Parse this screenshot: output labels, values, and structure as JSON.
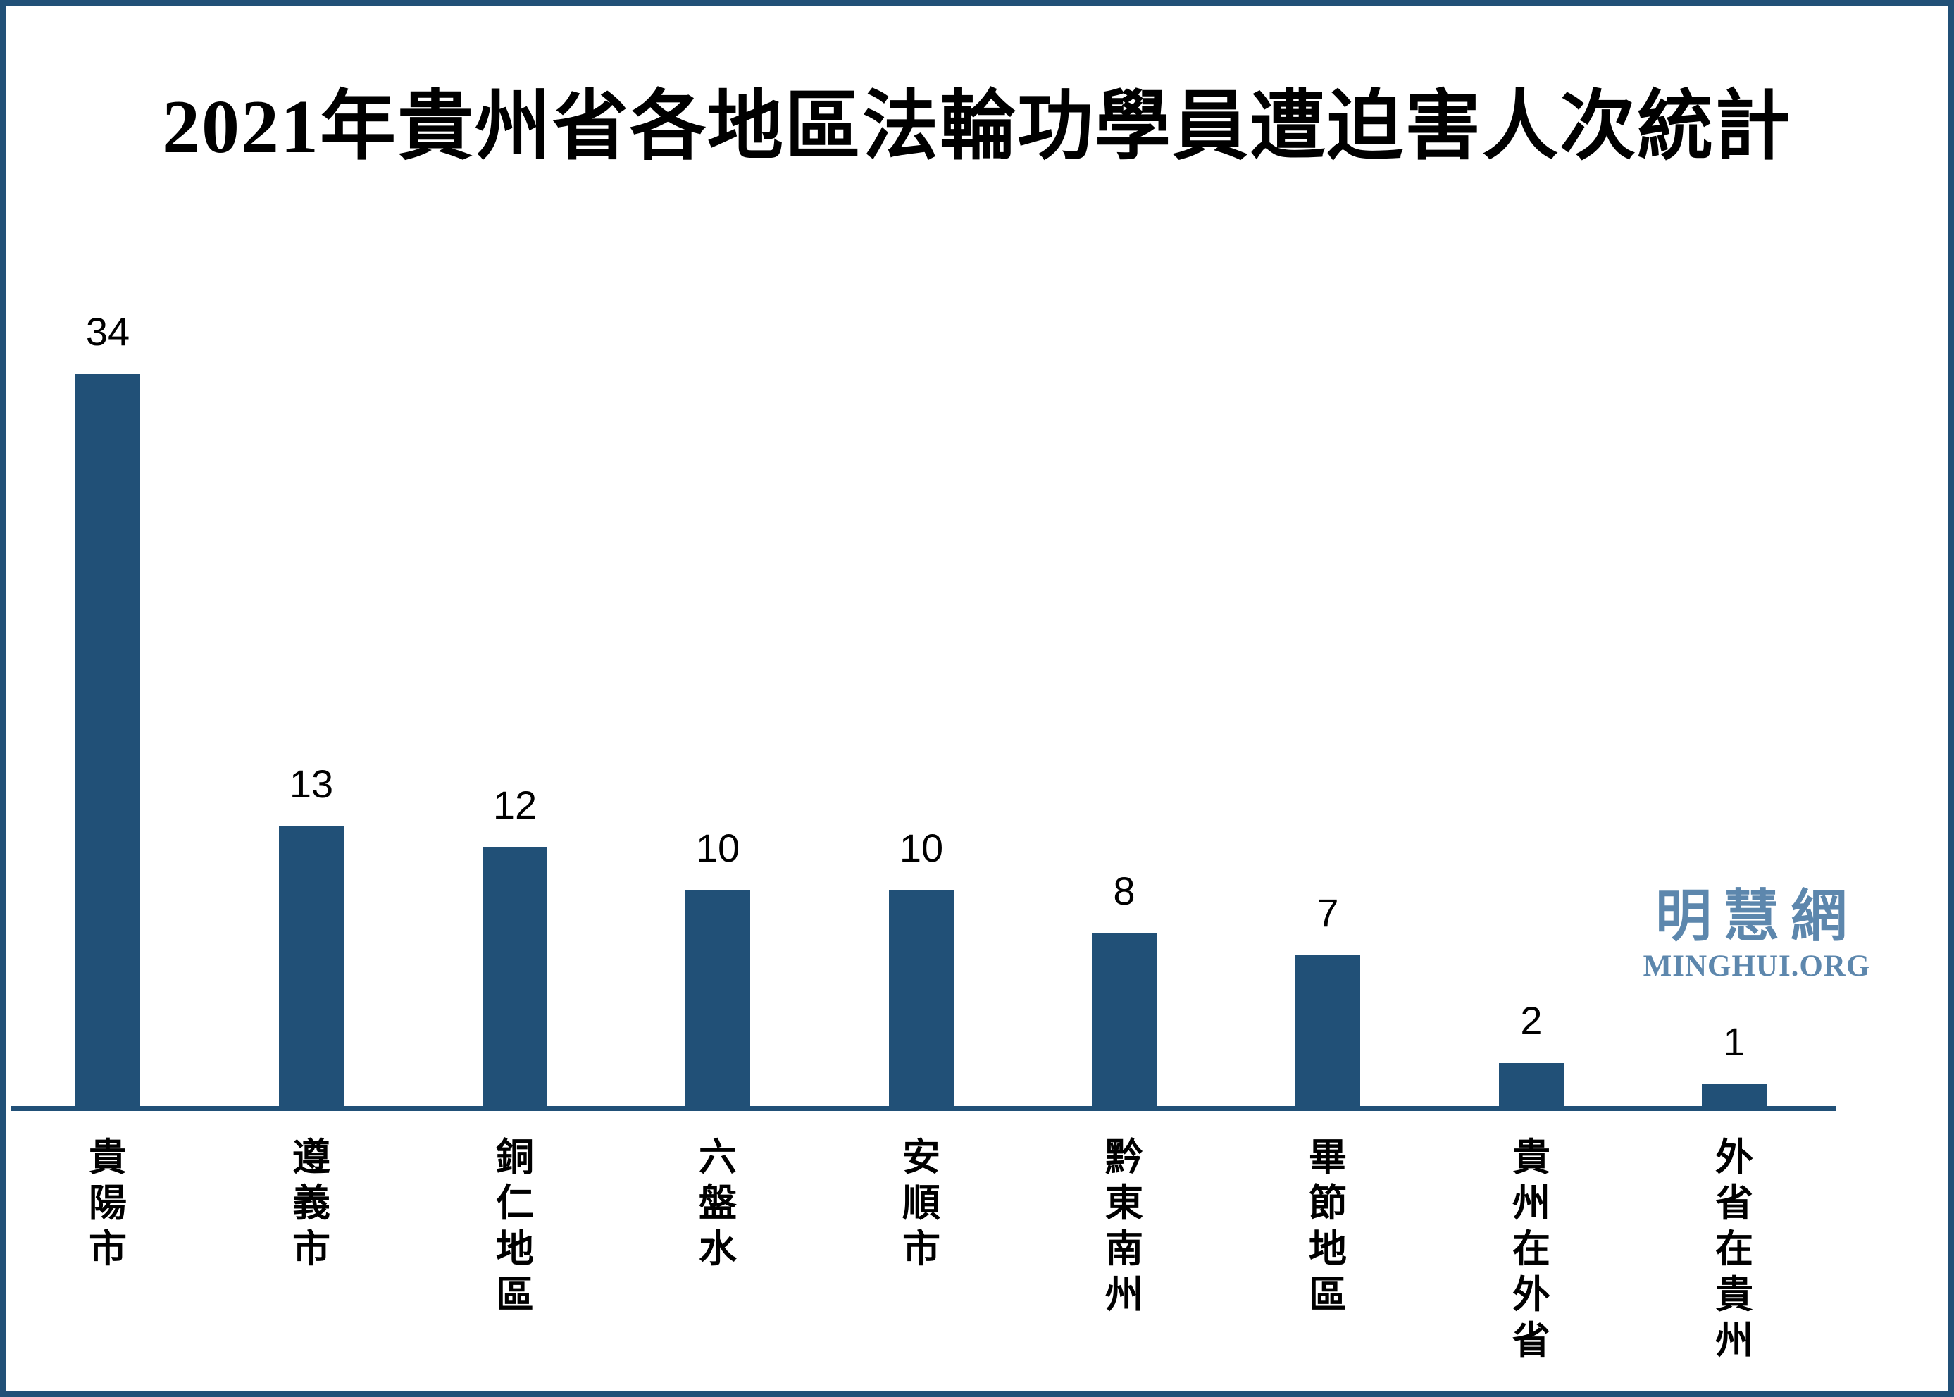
{
  "page": {
    "title": "2021年貴州省各地區法輪功學員遭迫害人次統計"
  },
  "logo": {
    "cjk": "明慧網",
    "latin": "MINGHUI.ORG"
  },
  "colors": {
    "bar": "#215077",
    "axis": "#215077",
    "border": "#215077",
    "logo": "#5d87ad",
    "value_label": "#000000",
    "category_label": "#000000"
  },
  "chart_data": {
    "type": "bar",
    "title": "2021年貴州省各地區法輪功學員遭迫害人次統計",
    "categories": [
      "貴陽市",
      "遵義市",
      "銅仁地區",
      "六盤水",
      "安順市",
      "黔東南州",
      "畢節地區",
      "貴州在外省",
      "外省在貴州"
    ],
    "values": [
      34,
      13,
      12,
      10,
      10,
      8,
      7,
      2,
      1
    ],
    "value_labels": [
      "34",
      "13",
      "12",
      "10",
      "10",
      "8",
      "7",
      "2",
      "1"
    ],
    "xlabel": "",
    "ylabel": "",
    "ylim": [
      0,
      34
    ],
    "grid": false,
    "legend": "none",
    "orientation": "vertical",
    "category_text_direction": "vertical",
    "bar_color": "#215077",
    "data_labels": "above-bars"
  }
}
